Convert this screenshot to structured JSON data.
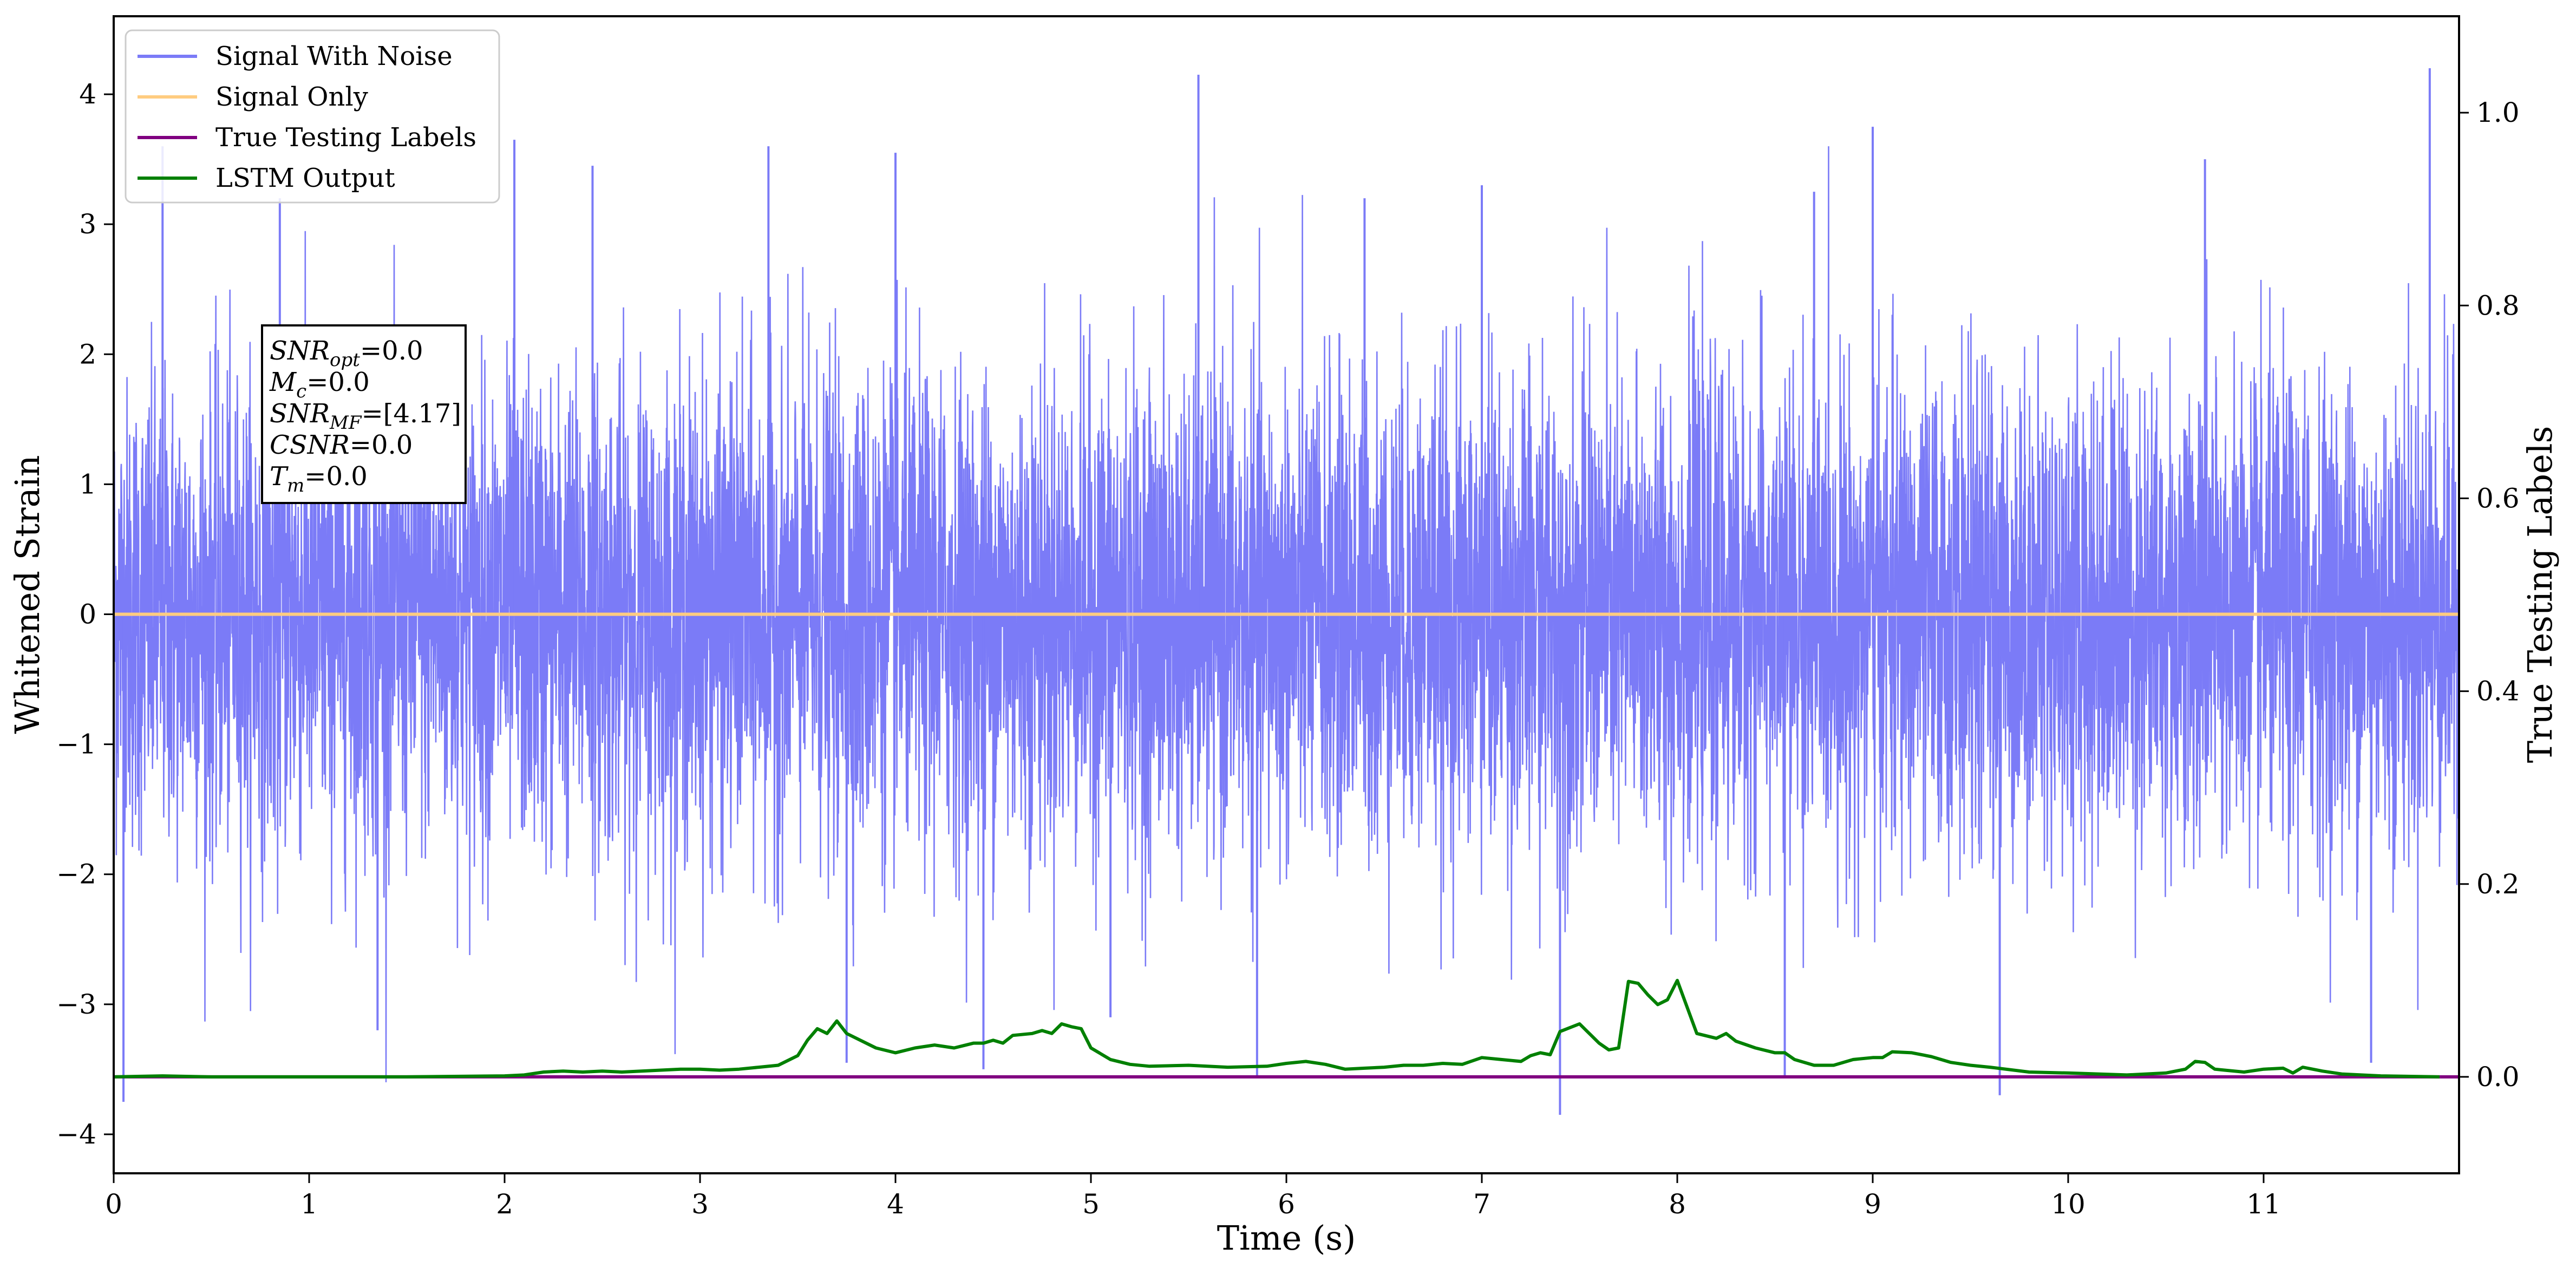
{
  "chart_data": {
    "type": "line",
    "xlabel": "Time (s)",
    "ylabel_left": "Whitened Strain",
    "ylabel_right": "True Testing Labels",
    "xlim": [
      0,
      12
    ],
    "ylim_left": [
      -4.3,
      4.6
    ],
    "ylim_right": [
      -0.1,
      1.1
    ],
    "x_ticks": [
      0,
      1,
      2,
      3,
      4,
      5,
      6,
      7,
      8,
      9,
      10,
      11
    ],
    "x_tick_labels": [
      "0",
      "1",
      "2",
      "3",
      "4",
      "5",
      "6",
      "7",
      "8",
      "9",
      "10",
      "11"
    ],
    "y_left_ticks": [
      -4,
      -3,
      -2,
      -1,
      0,
      1,
      2,
      3,
      4
    ],
    "y_left_tick_labels": [
      "−4",
      "−3",
      "−2",
      "−1",
      "0",
      "1",
      "2",
      "3",
      "4"
    ],
    "y_right_ticks": [
      0.0,
      0.2,
      0.4,
      0.6,
      0.8,
      1.0
    ],
    "y_right_tick_labels": [
      "0.0",
      "0.2",
      "0.4",
      "0.6",
      "0.8",
      "1.0"
    ],
    "grid": false,
    "legend_position": "top-left",
    "series": [
      {
        "name": "Signal With Noise",
        "axis": "left",
        "color": "#7b7bf7",
        "description_values": "dense gaussian noise, std ~0.9, peaks up to ~4.2 and down to ~-3.9",
        "peaks": [
          {
            "x": 0.05,
            "y": -3.75
          },
          {
            "x": 0.25,
            "y": 3.6
          },
          {
            "x": 0.85,
            "y": 3.2
          },
          {
            "x": 1.35,
            "y": -3.2
          },
          {
            "x": 2.05,
            "y": 3.65
          },
          {
            "x": 2.45,
            "y": 3.45
          },
          {
            "x": 3.35,
            "y": 3.6
          },
          {
            "x": 3.75,
            "y": -3.45
          },
          {
            "x": 4.0,
            "y": 3.55
          },
          {
            "x": 4.45,
            "y": -3.5
          },
          {
            "x": 5.1,
            "y": -3.1
          },
          {
            "x": 5.55,
            "y": 4.15
          },
          {
            "x": 5.85,
            "y": -3.55
          },
          {
            "x": 6.4,
            "y": 3.2
          },
          {
            "x": 7.0,
            "y": 3.3
          },
          {
            "x": 7.4,
            "y": -3.85
          },
          {
            "x": 8.55,
            "y": -3.55
          },
          {
            "x": 8.7,
            "y": 3.25
          },
          {
            "x": 9.0,
            "y": 3.75
          },
          {
            "x": 9.65,
            "y": -3.7
          },
          {
            "x": 10.7,
            "y": 3.5
          },
          {
            "x": 11.55,
            "y": -3.45
          },
          {
            "x": 11.85,
            "y": 4.2
          }
        ],
        "std": 0.9
      },
      {
        "name": "Signal Only",
        "axis": "left",
        "color": "#ffcc80",
        "x": [
          0,
          12
        ],
        "y": [
          0,
          0
        ]
      },
      {
        "name": "True Testing Labels",
        "axis": "right",
        "color": "#800080",
        "x": [
          0,
          12
        ],
        "y": [
          0,
          0
        ]
      },
      {
        "name": "LSTM Output",
        "axis": "right",
        "color": "#008000",
        "x": [
          0.0,
          0.25,
          0.5,
          1.0,
          1.5,
          2.0,
          2.1,
          2.2,
          2.3,
          2.4,
          2.5,
          2.6,
          2.7,
          2.8,
          2.9,
          3.0,
          3.1,
          3.2,
          3.3,
          3.4,
          3.5,
          3.55,
          3.6,
          3.65,
          3.7,
          3.75,
          3.8,
          3.9,
          4.0,
          4.1,
          4.2,
          4.3,
          4.4,
          4.45,
          4.5,
          4.55,
          4.6,
          4.7,
          4.75,
          4.8,
          4.85,
          4.9,
          4.95,
          5.0,
          5.1,
          5.2,
          5.3,
          5.5,
          5.7,
          5.9,
          6.0,
          6.1,
          6.2,
          6.3,
          6.4,
          6.5,
          6.6,
          6.7,
          6.8,
          6.9,
          7.0,
          7.1,
          7.2,
          7.25,
          7.3,
          7.35,
          7.4,
          7.5,
          7.55,
          7.6,
          7.65,
          7.7,
          7.75,
          7.8,
          7.85,
          7.9,
          7.95,
          8.0,
          8.1,
          8.2,
          8.25,
          8.3,
          8.4,
          8.5,
          8.55,
          8.6,
          8.7,
          8.8,
          8.9,
          9.0,
          9.05,
          9.1,
          9.2,
          9.3,
          9.4,
          9.5,
          9.6,
          9.8,
          10.0,
          10.3,
          10.5,
          10.6,
          10.65,
          10.7,
          10.75,
          10.8,
          10.9,
          11.0,
          11.1,
          11.15,
          11.2,
          11.3,
          11.4,
          11.6,
          11.9
        ],
        "y": [
          0.0,
          0.001,
          0.0,
          0.0,
          0.0,
          0.001,
          0.002,
          0.005,
          0.006,
          0.005,
          0.006,
          0.005,
          0.006,
          0.007,
          0.008,
          0.008,
          0.007,
          0.008,
          0.01,
          0.012,
          0.022,
          0.038,
          0.05,
          0.045,
          0.058,
          0.045,
          0.04,
          0.03,
          0.025,
          0.03,
          0.033,
          0.03,
          0.035,
          0.035,
          0.038,
          0.035,
          0.043,
          0.045,
          0.048,
          0.045,
          0.055,
          0.052,
          0.05,
          0.03,
          0.018,
          0.013,
          0.011,
          0.012,
          0.01,
          0.011,
          0.014,
          0.016,
          0.013,
          0.008,
          0.009,
          0.01,
          0.012,
          0.012,
          0.014,
          0.013,
          0.02,
          0.018,
          0.016,
          0.022,
          0.025,
          0.023,
          0.047,
          0.055,
          0.045,
          0.035,
          0.028,
          0.03,
          0.099,
          0.097,
          0.085,
          0.075,
          0.08,
          0.1,
          0.045,
          0.04,
          0.045,
          0.037,
          0.03,
          0.025,
          0.025,
          0.018,
          0.012,
          0.012,
          0.018,
          0.02,
          0.02,
          0.026,
          0.025,
          0.021,
          0.015,
          0.012,
          0.01,
          0.005,
          0.004,
          0.002,
          0.004,
          0.008,
          0.016,
          0.015,
          0.008,
          0.007,
          0.005,
          0.008,
          0.009,
          0.004,
          0.01,
          0.006,
          0.003,
          0.001,
          0.0
        ]
      }
    ],
    "annotation": {
      "lines": [
        {
          "sym": "SNR",
          "sub": "opt",
          "value": "=0.0"
        },
        {
          "sym": "M",
          "sub": "c",
          "value": "=0.0"
        },
        {
          "sym": "SNR",
          "sub": "MF",
          "value": "=[4.17]"
        },
        {
          "sym": "CSNR",
          "sub": "",
          "value": "=0.0"
        },
        {
          "sym": "T",
          "sub": "m",
          "value": "=0.0"
        }
      ]
    }
  }
}
